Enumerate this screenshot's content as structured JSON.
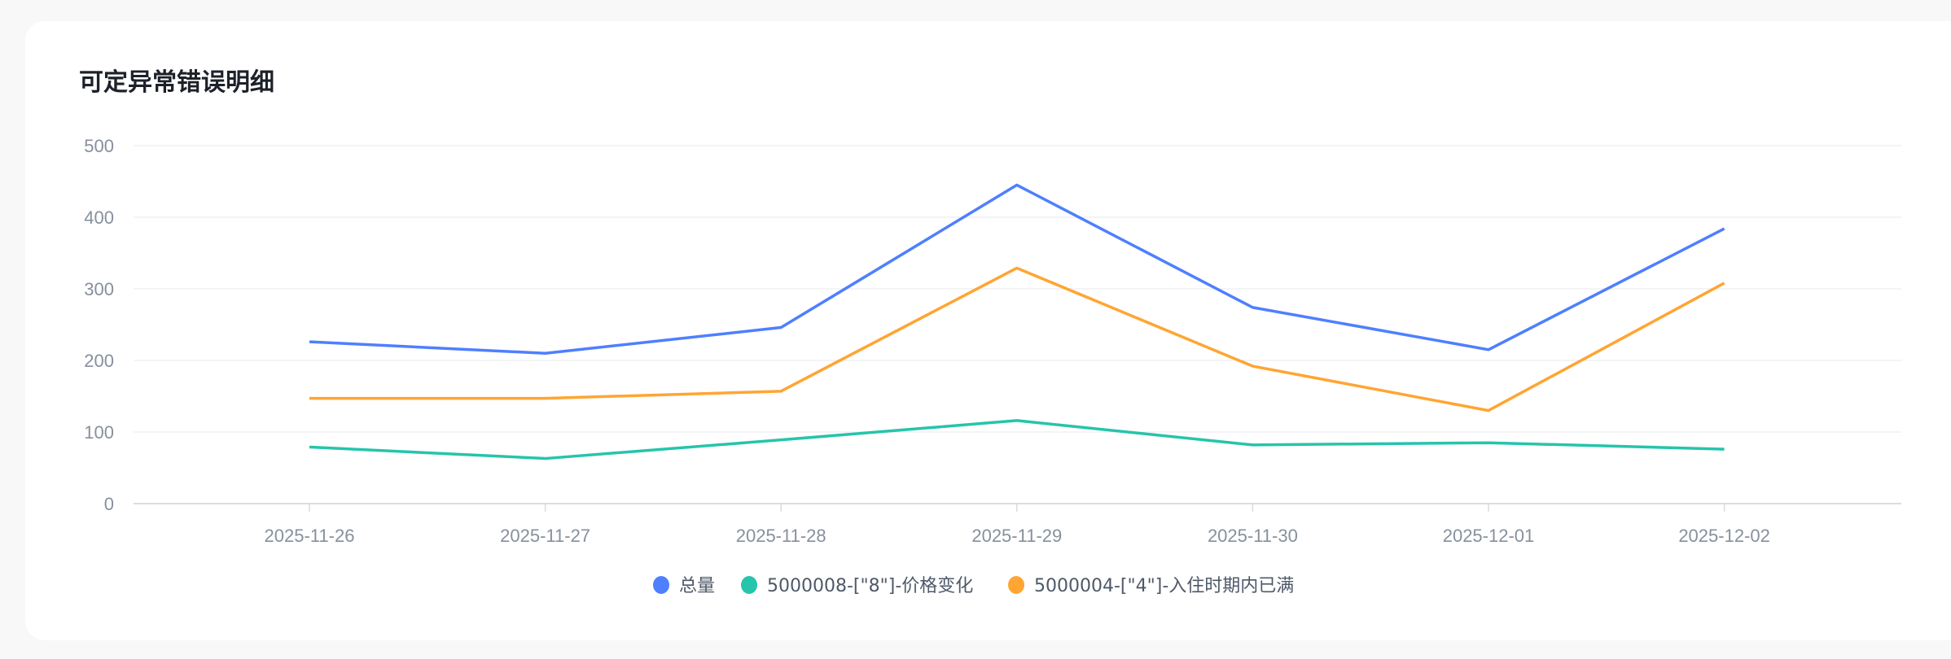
{
  "chart_data": {
    "type": "line",
    "title": "可定异常错误明细",
    "xlabel": "",
    "ylabel": "",
    "ylim": [
      0,
      500
    ],
    "yticks": [
      0,
      100,
      200,
      300,
      400,
      500
    ],
    "grid": true,
    "legend_position": "bottom",
    "categories": [
      "2025-11-26",
      "2025-11-27",
      "2025-11-28",
      "2025-11-29",
      "2025-11-30",
      "2025-12-01",
      "2025-12-02"
    ],
    "series": [
      {
        "name": "总量",
        "color": "#4e7fff",
        "values": [
          226,
          210,
          246,
          445,
          274,
          215,
          384
        ]
      },
      {
        "name": "5000008-[\"8\"]-价格变化",
        "color": "#26c4ab",
        "values": [
          79,
          63,
          89,
          116,
          82,
          85,
          76
        ]
      },
      {
        "name": "5000004-[\"4\"]-入住时期内已满",
        "color": "#ffa533",
        "values": [
          147,
          147,
          157,
          329,
          192,
          130,
          308
        ]
      }
    ]
  }
}
